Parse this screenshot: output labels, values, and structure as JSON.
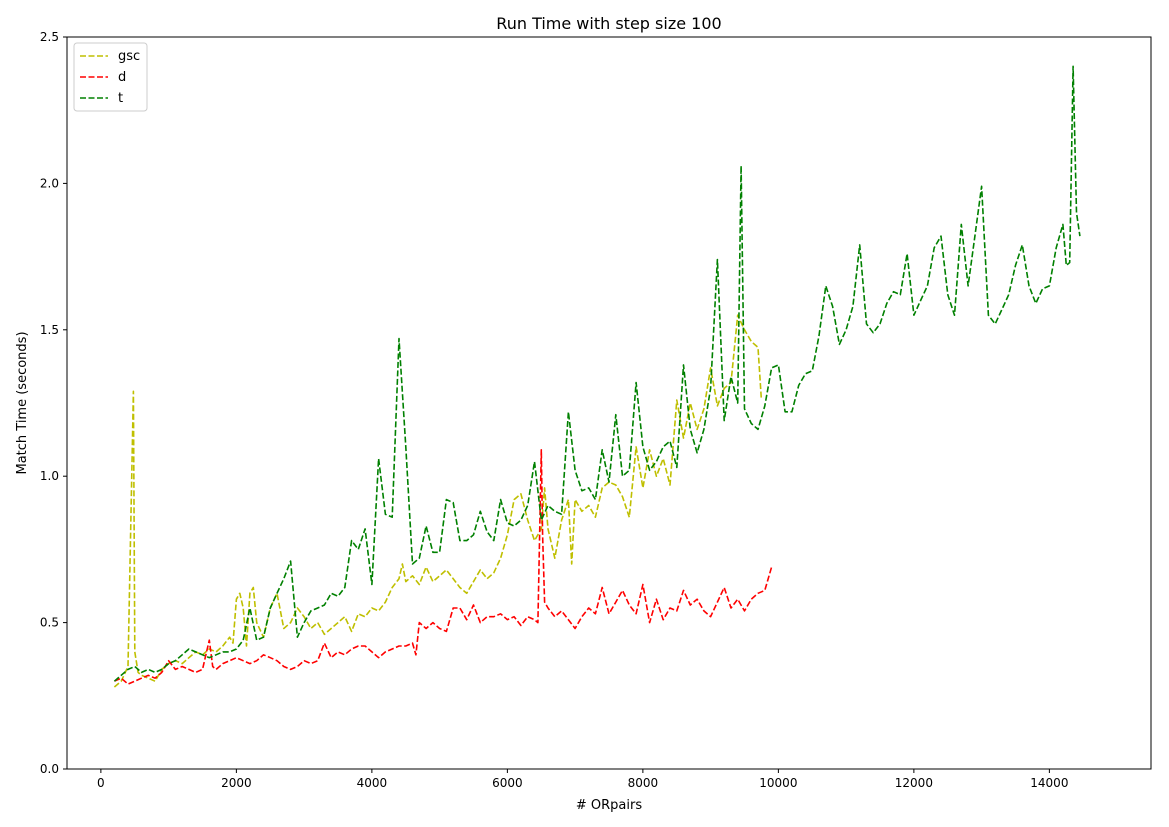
{
  "chart_data": {
    "type": "line",
    "title": "Run Time with step size 100",
    "xlabel": "# ORpairs",
    "ylabel": "Match Time (seconds)",
    "xlim": [
      -500,
      15500
    ],
    "ylim": [
      0,
      2.5
    ],
    "xticks": [
      0,
      2000,
      4000,
      6000,
      8000,
      10000,
      12000,
      14000
    ],
    "yticks": [
      "0.0",
      "0.5",
      "1.0",
      "1.5",
      "2.0",
      "2.5"
    ],
    "grid": false,
    "legend_position": "top-left",
    "series": [
      {
        "name": "gsc",
        "color": "#bfbf00",
        "x": [
          200,
          300,
          400,
          480,
          500,
          550,
          600,
          700,
          800,
          900,
          1000,
          1100,
          1200,
          1300,
          1400,
          1500,
          1600,
          1700,
          1800,
          1900,
          1950,
          2000,
          2050,
          2100,
          2150,
          2200,
          2250,
          2300,
          2400,
          2500,
          2600,
          2700,
          2800,
          2900,
          3000,
          3100,
          3200,
          3300,
          3400,
          3500,
          3600,
          3700,
          3800,
          3900,
          4000,
          4100,
          4200,
          4300,
          4400,
          4450,
          4500,
          4600,
          4700,
          4800,
          4900,
          5000,
          5100,
          5200,
          5300,
          5400,
          5500,
          5600,
          5700,
          5800,
          5900,
          6000,
          6100,
          6200,
          6300,
          6400,
          6500,
          6550,
          6600,
          6700,
          6800,
          6900,
          6950,
          7000,
          7100,
          7200,
          7300,
          7400,
          7500,
          7600,
          7700,
          7800,
          7900,
          8000,
          8100,
          8200,
          8300,
          8400,
          8500,
          8600,
          8700,
          8800,
          8900,
          9000,
          9100,
          9200,
          9300,
          9400,
          9500,
          9600,
          9700,
          9750
        ],
        "values": [
          0.28,
          0.3,
          0.35,
          1.29,
          0.4,
          0.33,
          0.32,
          0.31,
          0.3,
          0.34,
          0.36,
          0.37,
          0.36,
          0.38,
          0.4,
          0.39,
          0.41,
          0.4,
          0.42,
          0.45,
          0.43,
          0.58,
          0.6,
          0.55,
          0.42,
          0.6,
          0.62,
          0.5,
          0.45,
          0.55,
          0.6,
          0.48,
          0.5,
          0.55,
          0.52,
          0.48,
          0.5,
          0.46,
          0.48,
          0.5,
          0.52,
          0.47,
          0.53,
          0.52,
          0.55,
          0.54,
          0.57,
          0.62,
          0.65,
          0.7,
          0.64,
          0.66,
          0.63,
          0.69,
          0.64,
          0.66,
          0.68,
          0.65,
          0.62,
          0.6,
          0.64,
          0.68,
          0.65,
          0.67,
          0.72,
          0.8,
          0.92,
          0.94,
          0.85,
          0.78,
          0.82,
          0.96,
          0.82,
          0.72,
          0.85,
          0.92,
          0.7,
          0.92,
          0.88,
          0.9,
          0.86,
          0.96,
          0.98,
          0.97,
          0.93,
          0.86,
          1.1,
          0.96,
          1.09,
          1.0,
          1.06,
          0.97,
          1.26,
          1.13,
          1.25,
          1.16,
          1.23,
          1.37,
          1.24,
          1.3,
          1.32,
          1.55,
          1.5,
          1.46,
          1.44,
          1.26
        ]
      },
      {
        "name": "d",
        "color": "#ff0000",
        "x": [
          200,
          300,
          400,
          500,
          600,
          700,
          800,
          900,
          1000,
          1100,
          1200,
          1300,
          1400,
          1500,
          1600,
          1650,
          1700,
          1800,
          1900,
          2000,
          2100,
          2200,
          2300,
          2400,
          2500,
          2600,
          2700,
          2800,
          2900,
          3000,
          3100,
          3200,
          3300,
          3400,
          3500,
          3600,
          3700,
          3800,
          3900,
          4000,
          4100,
          4200,
          4300,
          4400,
          4500,
          4600,
          4650,
          4700,
          4800,
          4900,
          5000,
          5100,
          5200,
          5300,
          5400,
          5500,
          5600,
          5700,
          5800,
          5900,
          6000,
          6100,
          6200,
          6300,
          6400,
          6450,
          6500,
          6520,
          6550,
          6600,
          6700,
          6800,
          6900,
          7000,
          7100,
          7200,
          7300,
          7400,
          7500,
          7600,
          7700,
          7800,
          7900,
          8000,
          8100,
          8200,
          8300,
          8400,
          8500,
          8600,
          8700,
          8800,
          8900,
          9000,
          9100,
          9200,
          9300,
          9400,
          9500,
          9600,
          9700,
          9800,
          9900
        ],
        "values": [
          0.3,
          0.31,
          0.29,
          0.3,
          0.31,
          0.32,
          0.31,
          0.33,
          0.37,
          0.34,
          0.35,
          0.34,
          0.33,
          0.34,
          0.44,
          0.35,
          0.34,
          0.36,
          0.37,
          0.38,
          0.37,
          0.36,
          0.37,
          0.39,
          0.38,
          0.37,
          0.35,
          0.34,
          0.35,
          0.37,
          0.36,
          0.37,
          0.43,
          0.38,
          0.4,
          0.39,
          0.41,
          0.42,
          0.42,
          0.4,
          0.38,
          0.4,
          0.41,
          0.42,
          0.42,
          0.43,
          0.39,
          0.5,
          0.48,
          0.5,
          0.48,
          0.47,
          0.55,
          0.55,
          0.51,
          0.56,
          0.5,
          0.52,
          0.52,
          0.53,
          0.51,
          0.52,
          0.49,
          0.52,
          0.51,
          0.5,
          1.09,
          0.8,
          0.57,
          0.55,
          0.52,
          0.54,
          0.51,
          0.48,
          0.52,
          0.55,
          0.53,
          0.62,
          0.53,
          0.57,
          0.61,
          0.56,
          0.53,
          0.63,
          0.5,
          0.58,
          0.51,
          0.55,
          0.54,
          0.61,
          0.56,
          0.58,
          0.54,
          0.52,
          0.57,
          0.62,
          0.55,
          0.58,
          0.54,
          0.58,
          0.6,
          0.61,
          0.69
        ]
      },
      {
        "name": "t",
        "color": "#008000",
        "x": [
          200,
          300,
          400,
          500,
          600,
          700,
          800,
          900,
          1000,
          1100,
          1200,
          1300,
          1400,
          1500,
          1600,
          1700,
          1800,
          1900,
          2000,
          2100,
          2200,
          2300,
          2400,
          2500,
          2600,
          2700,
          2800,
          2900,
          3000,
          3100,
          3200,
          3300,
          3400,
          3500,
          3600,
          3700,
          3800,
          3900,
          4000,
          4100,
          4200,
          4300,
          4400,
          4500,
          4600,
          4700,
          4800,
          4900,
          5000,
          5100,
          5200,
          5300,
          5400,
          5500,
          5600,
          5700,
          5800,
          5900,
          6000,
          6100,
          6200,
          6300,
          6400,
          6500,
          6600,
          6700,
          6800,
          6900,
          7000,
          7100,
          7200,
          7300,
          7400,
          7500,
          7600,
          7700,
          7800,
          7900,
          8000,
          8100,
          8200,
          8300,
          8400,
          8500,
          8600,
          8700,
          8800,
          8900,
          9000,
          9100,
          9200,
          9300,
          9400,
          9450,
          9500,
          9600,
          9700,
          9800,
          9900,
          10000,
          10100,
          10200,
          10300,
          10400,
          10500,
          10600,
          10700,
          10800,
          10900,
          11000,
          11100,
          11200,
          11300,
          11400,
          11500,
          11600,
          11700,
          11800,
          11900,
          12000,
          12100,
          12200,
          12300,
          12400,
          12500,
          12600,
          12700,
          12800,
          12900,
          13000,
          13100,
          13200,
          13300,
          13400,
          13500,
          13600,
          13700,
          13800,
          13900,
          14000,
          14100,
          14200,
          14250,
          14300,
          14350,
          14400,
          14450
        ],
        "values": [
          0.3,
          0.32,
          0.34,
          0.35,
          0.33,
          0.34,
          0.33,
          0.34,
          0.36,
          0.37,
          0.39,
          0.41,
          0.4,
          0.39,
          0.38,
          0.39,
          0.4,
          0.4,
          0.41,
          0.44,
          0.55,
          0.44,
          0.45,
          0.55,
          0.6,
          0.65,
          0.71,
          0.45,
          0.5,
          0.54,
          0.55,
          0.56,
          0.6,
          0.59,
          0.62,
          0.78,
          0.75,
          0.82,
          0.63,
          1.06,
          0.87,
          0.86,
          1.47,
          1.1,
          0.7,
          0.72,
          0.83,
          0.74,
          0.74,
          0.92,
          0.91,
          0.78,
          0.78,
          0.8,
          0.88,
          0.81,
          0.78,
          0.92,
          0.84,
          0.83,
          0.85,
          0.9,
          1.05,
          0.85,
          0.9,
          0.88,
          0.87,
          1.22,
          1.02,
          0.95,
          0.96,
          0.92,
          1.09,
          0.98,
          1.21,
          1.0,
          1.02,
          1.32,
          1.1,
          1.02,
          1.05,
          1.1,
          1.12,
          1.03,
          1.38,
          1.16,
          1.08,
          1.16,
          1.3,
          1.74,
          1.19,
          1.34,
          1.25,
          2.06,
          1.23,
          1.18,
          1.16,
          1.24,
          1.37,
          1.38,
          1.22,
          1.22,
          1.31,
          1.35,
          1.36,
          1.48,
          1.65,
          1.58,
          1.45,
          1.5,
          1.58,
          1.79,
          1.52,
          1.49,
          1.52,
          1.59,
          1.63,
          1.62,
          1.76,
          1.55,
          1.6,
          1.65,
          1.78,
          1.82,
          1.62,
          1.55,
          1.86,
          1.65,
          1.82,
          1.99,
          1.55,
          1.52,
          1.57,
          1.62,
          1.72,
          1.79,
          1.65,
          1.59,
          1.64,
          1.65,
          1.78,
          1.86,
          1.72,
          1.73,
          2.4,
          1.9,
          1.82
        ]
      }
    ]
  }
}
